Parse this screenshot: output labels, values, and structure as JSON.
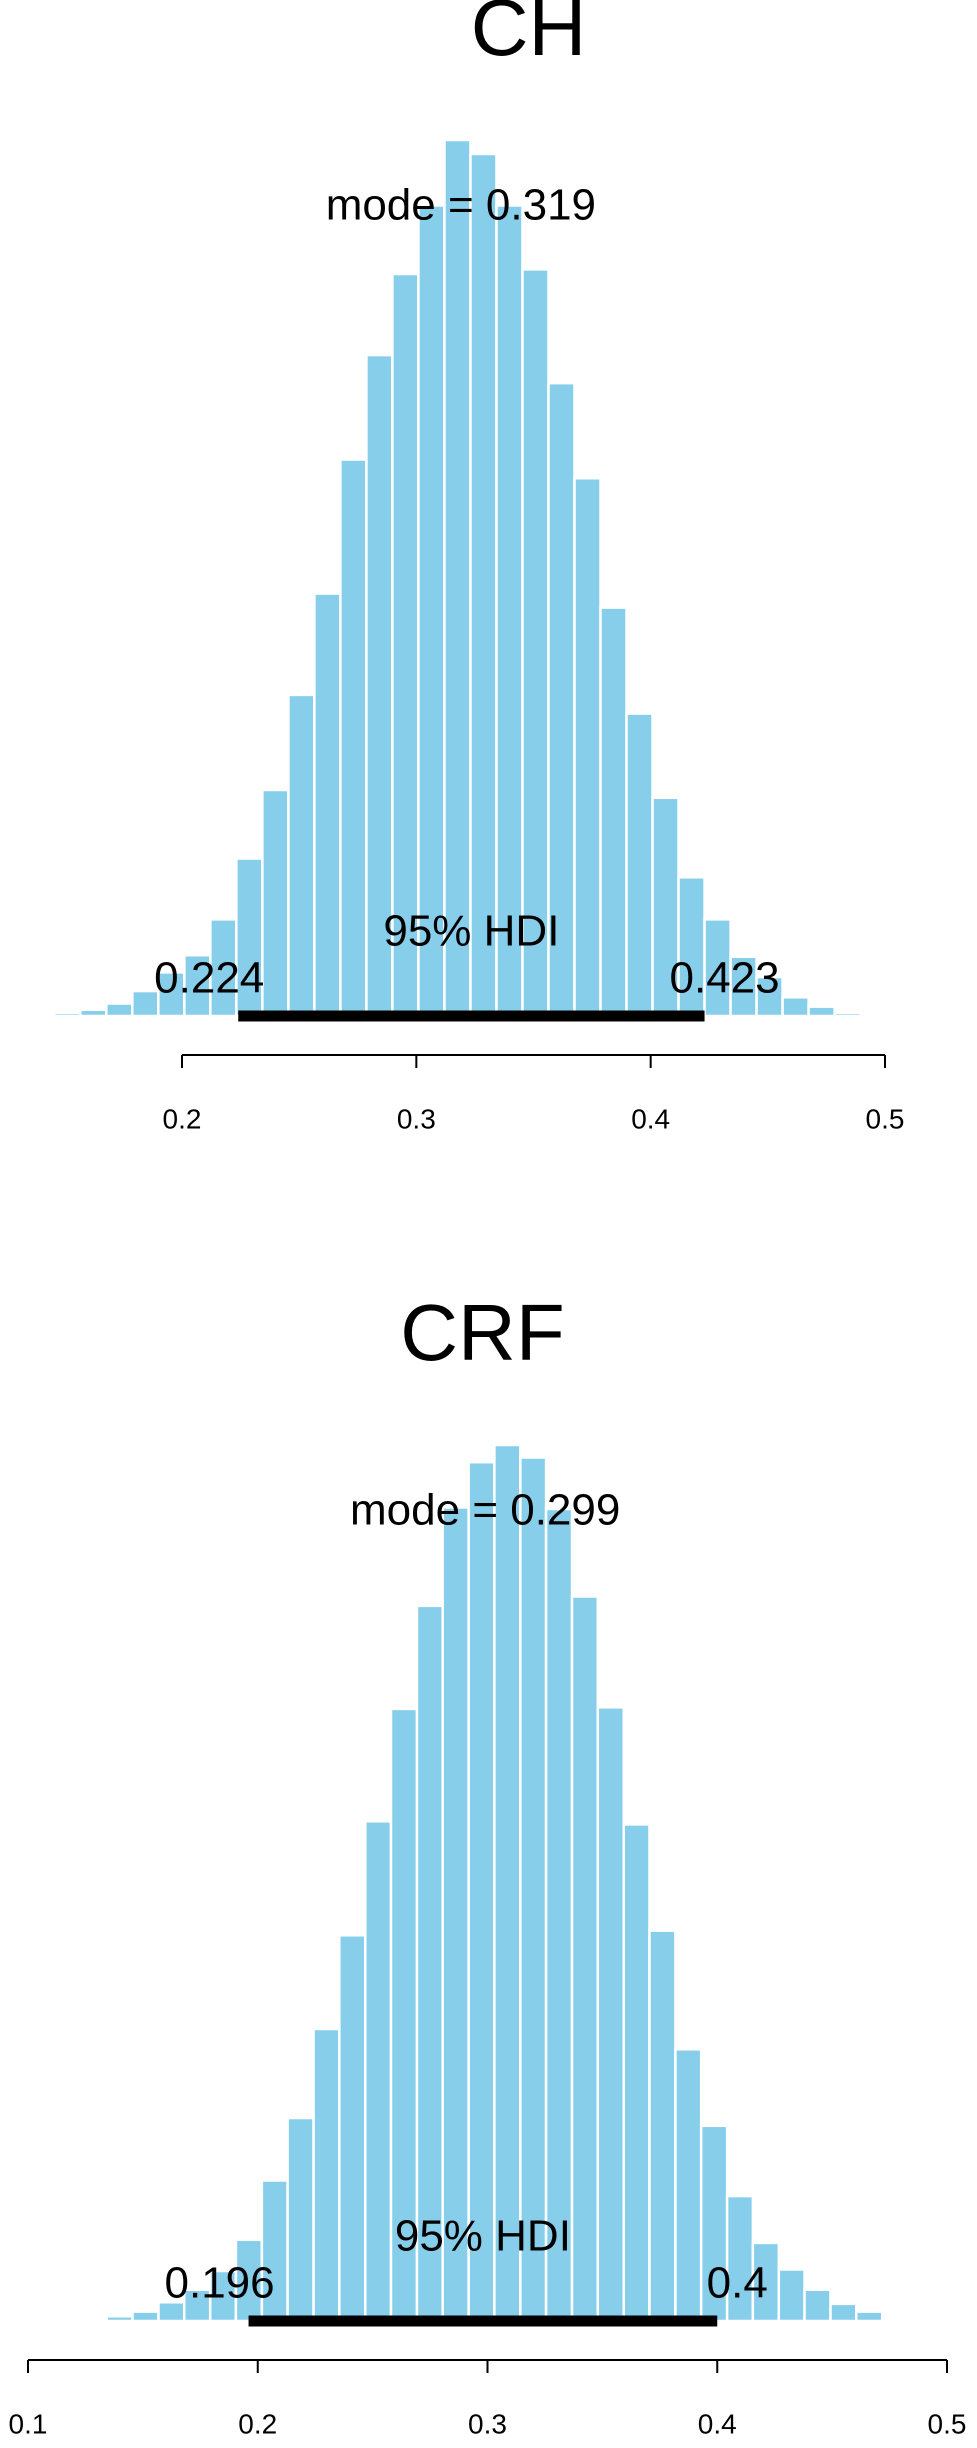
{
  "chart_data": [
    {
      "type": "histogram",
      "title": "CH",
      "color": "#87ceeb",
      "bins": [
        0.1455,
        0.1566,
        0.1677,
        0.1788,
        0.1899,
        0.201,
        0.2121,
        0.2232,
        0.2343,
        0.2454,
        0.2565,
        0.2676,
        0.2787,
        0.2898,
        0.3009,
        0.312,
        0.3231,
        0.3342,
        0.3453,
        0.3564,
        0.3675,
        0.3786,
        0.3897,
        0.4008,
        0.4119,
        0.423,
        0.4341,
        0.4452,
        0.4563,
        0.4674,
        0.4785,
        0.4896,
        0.5007
      ],
      "values": [
        2,
        4,
        8,
        16,
        28,
        39,
        62,
        101,
        145,
        206,
        271,
        357,
        424,
        476,
        520,
        562,
        553,
        520,
        479,
        406,
        345,
        262,
        194,
        140,
        89,
        62,
        38,
        25,
        12,
        6,
        2,
        1
      ],
      "xlim": [
        0.2,
        0.5
      ],
      "xticks": [
        0.2,
        0.3,
        0.4,
        0.5
      ],
      "mode": {
        "value": 0.319,
        "label": "mode = 0.319"
      },
      "hdi_label": "95% HDI",
      "hdi": [
        0.224,
        0.423
      ]
    },
    {
      "type": "histogram",
      "title": "CRF",
      "color": "#87ceeb",
      "bins": [
        0.123,
        0.1343,
        0.1455,
        0.1568,
        0.168,
        0.1793,
        0.1905,
        0.2018,
        0.213,
        0.2243,
        0.2355,
        0.2468,
        0.258,
        0.2693,
        0.2805,
        0.2918,
        0.303,
        0.3143,
        0.3255,
        0.3368,
        0.348,
        0.3593,
        0.3705,
        0.3818,
        0.393,
        0.4043,
        0.4155,
        0.4268,
        0.438,
        0.4493,
        0.4605,
        0.4718
      ],
      "values": [
        1,
        3,
        6,
        12,
        20,
        32,
        52,
        90,
        130,
        187,
        247,
        320,
        392,
        458,
        521,
        550,
        561,
        553,
        520,
        464,
        393,
        318,
        250,
        174,
        125,
        80,
        50,
        33,
        20,
        11,
        6
      ],
      "xlim": [
        0.1,
        0.5
      ],
      "xticks": [
        0.1,
        0.2,
        0.3,
        0.4,
        0.5
      ],
      "mode": {
        "value": 0.299,
        "label": "mode = 0.299"
      },
      "hdi_label": "95% HDI",
      "hdi": [
        0.196,
        0.4
      ]
    }
  ]
}
